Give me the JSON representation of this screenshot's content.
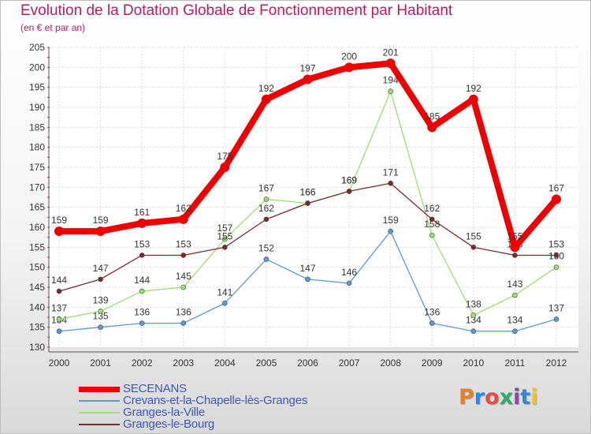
{
  "header": {
    "title": "Evolution de la Dotation Globale de Fonctionnement par Habitant",
    "subtitle": "(en € et par an)"
  },
  "logo": {
    "text": "Proxiti",
    "colors": [
      "#e67e22",
      "#2e86de",
      "#e74c3c",
      "#27ae60",
      "#8e44ad",
      "#2e86de",
      "#f1c40f"
    ]
  },
  "chart_data": {
    "type": "line",
    "title": "Evolution de la Dotation Globale de Fonctionnement par Habitant",
    "subtitle": "(en € et par an)",
    "xlabel": "",
    "ylabel": "",
    "x": [
      "2000",
      "2001",
      "2002",
      "2003",
      "2004",
      "2005",
      "2006",
      "2007",
      "2008",
      "2009",
      "2010",
      "2011",
      "2012"
    ],
    "ylim": [
      130,
      205
    ],
    "yticks": [
      130,
      135,
      140,
      145,
      150,
      155,
      160,
      165,
      170,
      175,
      180,
      185,
      190,
      195,
      200,
      205
    ],
    "grid": true,
    "legend": "bottom-left",
    "series": [
      {
        "name": "SECENANS",
        "color": "#ee0000",
        "emphasis": true,
        "values": [
          159,
          159,
          161,
          162,
          175,
          192,
          197,
          200,
          201,
          185,
          192,
          155,
          167
        ]
      },
      {
        "name": "Crevans-et-la-Chapelle-lès-Granges",
        "color": "#5b9bd5",
        "values": [
          134,
          135,
          136,
          136,
          141,
          152,
          147,
          146,
          159,
          136,
          134,
          134,
          137
        ]
      },
      {
        "name": "Granges-la-Ville",
        "color": "#9be070",
        "values": [
          137,
          139,
          144,
          145,
          157,
          167,
          166,
          169,
          194,
          158,
          138,
          143,
          150
        ]
      },
      {
        "name": "Granges-le-Bourg",
        "color": "#7a2a2a",
        "values": [
          144,
          147,
          153,
          153,
          155,
          162,
          166,
          169,
          171,
          162,
          155,
          153,
          153
        ]
      }
    ]
  }
}
